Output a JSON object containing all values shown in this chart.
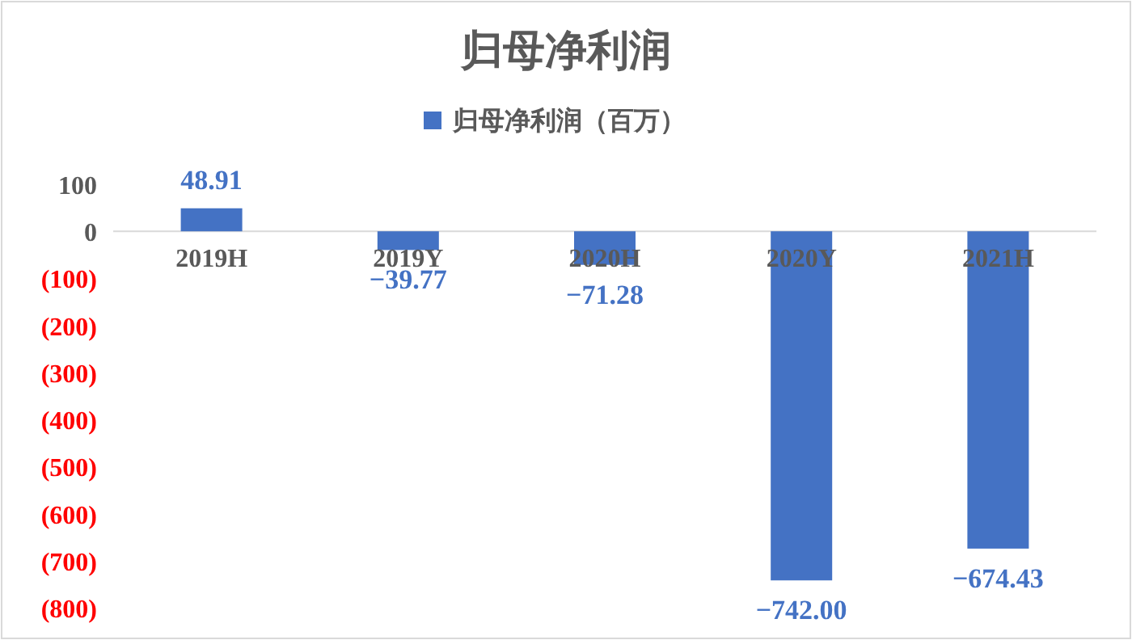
{
  "chart_data": {
    "type": "bar",
    "title": "归母净利润",
    "categories": [
      "2019H",
      "2019Y",
      "2020H",
      "2020Y",
      "2021H"
    ],
    "series": [
      {
        "name": "归母净利润（百万）",
        "color": "#4472c4",
        "values": [
          48.91,
          -39.77,
          -71.28,
          -742.0,
          -674.43
        ],
        "value_labels": [
          "48.91",
          "−39.77",
          "−71.28",
          "−742.00",
          "−674.43"
        ]
      }
    ],
    "ylim": [
      -800,
      100
    ],
    "yticks": [
      100,
      0,
      {
        "value": -100,
        "label": "(100)"
      },
      {
        "value": -200,
        "label": "(200)"
      },
      {
        "value": -300,
        "label": "(300)"
      },
      {
        "value": -400,
        "label": "(400)"
      },
      {
        "value": -500,
        "label": "(500)"
      },
      {
        "value": -600,
        "label": "(600)"
      },
      {
        "value": -700,
        "label": "(700)"
      },
      {
        "value": -800,
        "label": "(800)"
      }
    ],
    "legend": "top",
    "grid": false
  }
}
